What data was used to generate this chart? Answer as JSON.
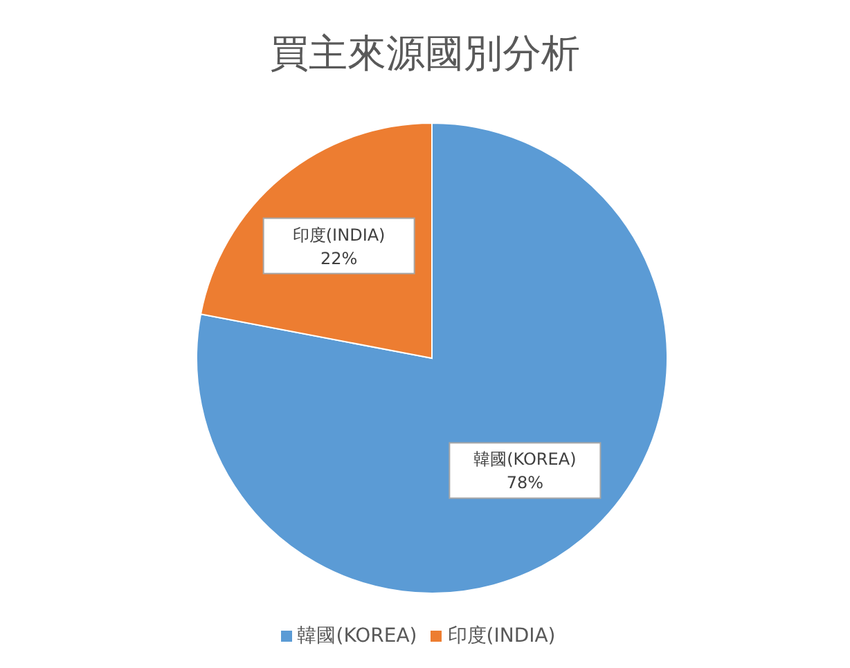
{
  "chart_data": {
    "type": "pie",
    "title": "買主來源國別分析",
    "categories": [
      "韓國(KOREA)",
      "印度(INDIA)"
    ],
    "values": [
      78,
      22
    ],
    "colors": [
      "#5b9bd5",
      "#ed7d31"
    ],
    "value_labels": [
      "78%",
      "22%"
    ],
    "legend": "bottom"
  }
}
